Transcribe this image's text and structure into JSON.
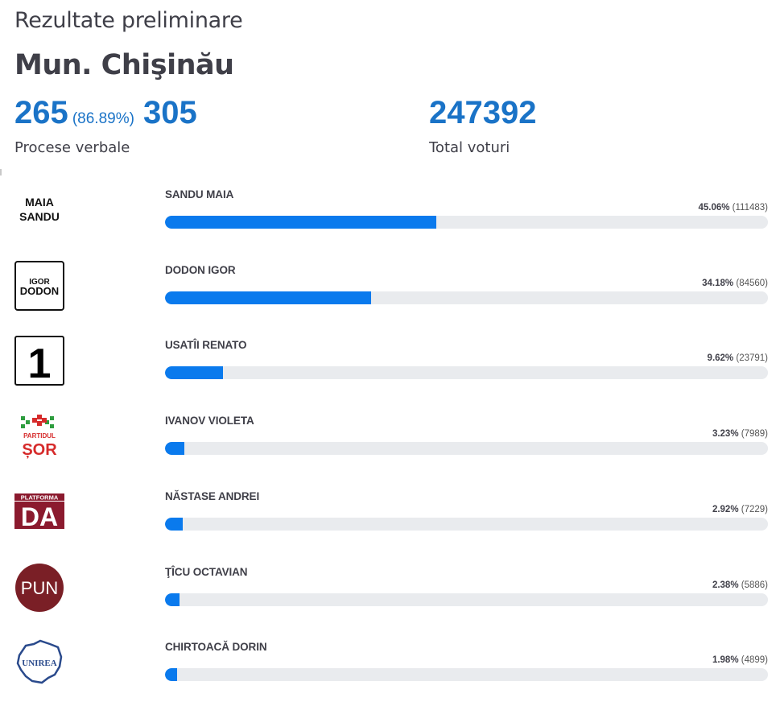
{
  "header": {
    "title": "Rezultate preliminare",
    "region": "Mun. Chişinău"
  },
  "stats": {
    "counted": "265",
    "counted_pct": "(86.89%)",
    "total_pv": "305",
    "pv_label": "Procese verbale",
    "total_votes": "247392",
    "votes_label": "Total voturi"
  },
  "colors": {
    "accent": "#1a73c7",
    "bar_fill": "#0a7aed",
    "bar_track": "#e9ebee"
  },
  "candidates": [
    {
      "name": "SANDU MAIA",
      "pct_label": "45.06%",
      "votes_label": "(111483)",
      "share": 45.06,
      "logo": "maia-sandu-logo",
      "logo_text": "MAIA SANDU"
    },
    {
      "name": "DODON IGOR",
      "pct_label": "34.18%",
      "votes_label": "(84560)",
      "share": 34.18,
      "logo": "igor-dodon-logo",
      "logo_text": "IGOR DODON"
    },
    {
      "name": "USATÎI RENATO",
      "pct_label": "9.62%",
      "votes_label": "(23791)",
      "share": 9.62,
      "logo": "partidul-nostru-logo",
      "logo_text": "1"
    },
    {
      "name": "IVANOV VIOLETA",
      "pct_label": "3.23%",
      "votes_label": "(7989)",
      "share": 3.23,
      "logo": "partidul-sor-logo",
      "logo_text": "PARTIDUL ȘOR"
    },
    {
      "name": "NĂSTASE ANDREI",
      "pct_label": "2.92%",
      "votes_label": "(7229)",
      "share": 2.92,
      "logo": "platforma-da-logo",
      "logo_text": "PLATFORMA DA"
    },
    {
      "name": "ŢÎCU OCTAVIAN",
      "pct_label": "2.38%",
      "votes_label": "(5886)",
      "share": 2.38,
      "logo": "pun-logo",
      "logo_text": "PUN"
    },
    {
      "name": "CHIRTOACĂ DORIN",
      "pct_label": "1.98%",
      "votes_label": "(4899)",
      "share": 1.98,
      "logo": "unirea-logo",
      "logo_text": "UNIREA"
    }
  ]
}
